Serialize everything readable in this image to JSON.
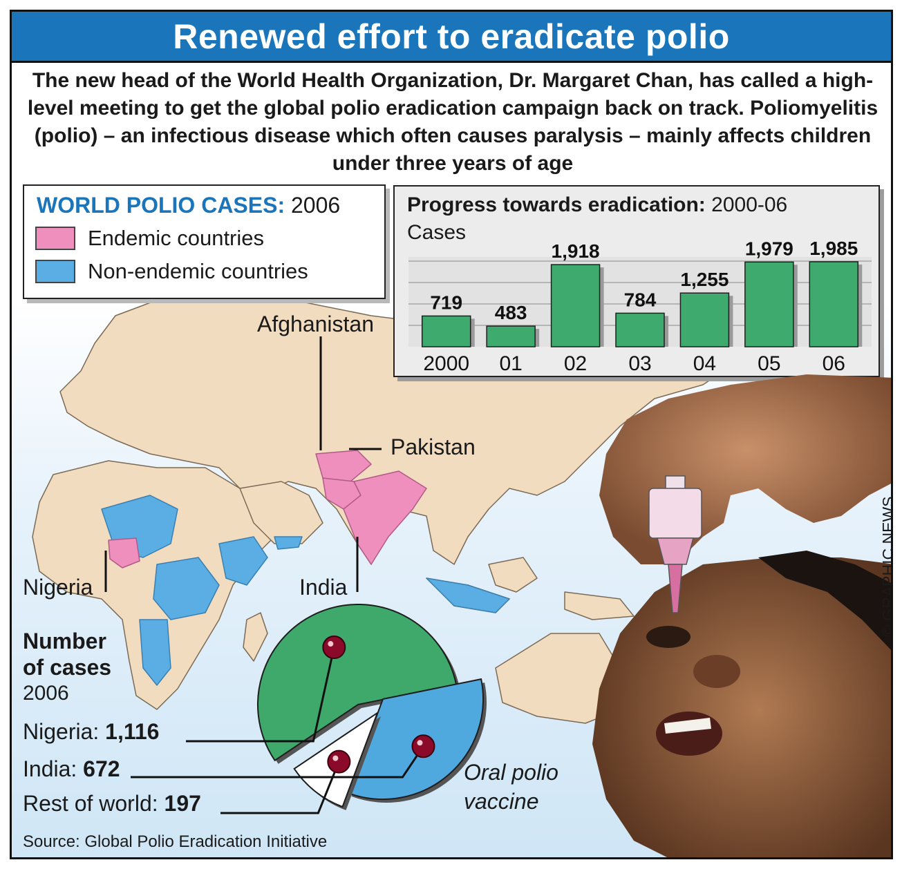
{
  "title": "Renewed effort to eradicate polio",
  "intro": "The new head of the World Health Organization, Dr. Margaret Chan, has called a high-level meeting to get the global polio eradication campaign back on track. Poliomyelitis (polio) – an infectious disease which often causes paralysis – mainly affects children under three years of age",
  "legend": {
    "title_main": "WORLD POLIO CASES:",
    "title_year": "2006",
    "items": [
      {
        "label": "Endemic countries",
        "color": "#ef8fbe"
      },
      {
        "label": "Non-endemic countries",
        "color": "#5aaee3"
      }
    ]
  },
  "map_labels": {
    "afghanistan": "Afghanistan",
    "pakistan": "Pakistan",
    "nigeria": "Nigeria",
    "india": "India"
  },
  "cases_block": {
    "heading_line1": "Number",
    "heading_line2": "of cases",
    "year": "2006",
    "rows": [
      {
        "label": "Nigeria:",
        "value": "1,116"
      },
      {
        "label": "India:",
        "value": "672"
      },
      {
        "label": "Rest of world:",
        "value": "197"
      }
    ]
  },
  "vaccine_label": {
    "line1": "Oral polio",
    "line2": "vaccine"
  },
  "source": "Source: Global Polio Eradication Initiative",
  "credit": "© GRAPHIC NEWS",
  "colors": {
    "title_bar": "#1b75bb",
    "bar": "#3faa6e",
    "pie_nigeria": "#3fa86b",
    "pie_india": "#4fa8de",
    "pie_rest": "#ffffff",
    "land": "#f2dcc0",
    "marker": "#8b0a2a"
  },
  "chart_data": [
    {
      "type": "bar",
      "title": "Progress towards eradication:",
      "subtitle": "2000-06",
      "ylabel": "Cases",
      "categories": [
        "2000",
        "01",
        "02",
        "03",
        "04",
        "05",
        "06"
      ],
      "values": [
        719,
        483,
        1918,
        784,
        1255,
        1979,
        1985
      ],
      "value_labels": [
        "719",
        "483",
        "1,918",
        "784",
        "1,255",
        "1,979",
        "1,985"
      ],
      "ylim": [
        0,
        2000
      ],
      "grid": true
    },
    {
      "type": "pie",
      "title": "Number of cases",
      "subtitle": "2006",
      "labels": [
        "Nigeria",
        "India",
        "Rest of world"
      ],
      "values": [
        1116,
        672,
        197
      ]
    }
  ]
}
